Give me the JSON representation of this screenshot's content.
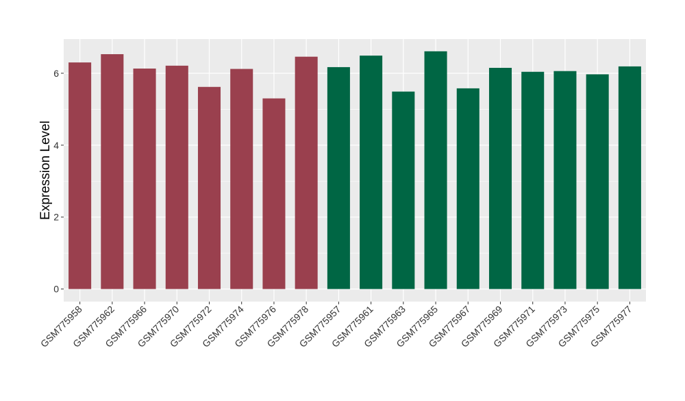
{
  "chart_data": {
    "type": "bar",
    "title": "",
    "xlabel": "",
    "ylabel": "Expression Level",
    "ylim": [
      -0.35,
      6.95
    ],
    "yticks": [
      0,
      2,
      4,
      6
    ],
    "grid": true,
    "legend": "none",
    "background_color": "#EBEBEB",
    "group_colors": [
      "#9A404E",
      "#006644"
    ],
    "categories": [
      "GSM775958",
      "GSM775962",
      "GSM775966",
      "GSM775970",
      "GSM775972",
      "GSM775974",
      "GSM775976",
      "GSM775978",
      "GSM775957",
      "GSM775961",
      "GSM775963",
      "GSM775965",
      "GSM775967",
      "GSM775969",
      "GSM775971",
      "GSM775973",
      "GSM775975",
      "GSM775977"
    ],
    "values": [
      6.3,
      6.53,
      6.13,
      6.21,
      5.62,
      6.12,
      5.3,
      6.46,
      6.17,
      6.49,
      5.49,
      6.61,
      5.58,
      6.15,
      6.04,
      6.06,
      5.97,
      6.19
    ],
    "bar_groups": [
      0,
      0,
      0,
      0,
      0,
      0,
      0,
      0,
      1,
      1,
      1,
      1,
      1,
      1,
      1,
      1,
      1,
      1
    ]
  }
}
